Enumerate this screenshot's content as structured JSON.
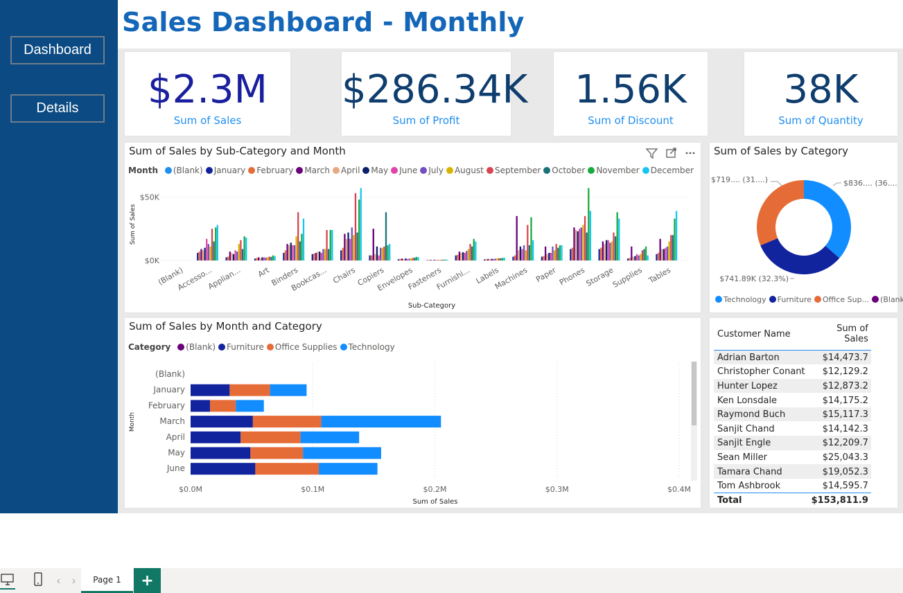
{
  "title": "Sales Dashboard - Monthly",
  "nav": {
    "dashboard_label": "Dashboard",
    "details_label": "Details"
  },
  "kpis": [
    {
      "value": "$2.3M",
      "label": "Sum of Sales",
      "color": "#1a1f9e"
    },
    {
      "value": "$286.34K",
      "label": "Sum of Profit",
      "color": "#0e3d6e"
    },
    {
      "value": "1.56K",
      "label": "Sum of Discount",
      "color": "#0e3d6e"
    },
    {
      "value": "38K",
      "label": "Sum of Quantity",
      "color": "#0e3d6e"
    }
  ],
  "colors": {
    "(Blank)": "#1f8ef0",
    "January": "#12239e",
    "February": "#e66c37",
    "March": "#6b007b",
    "April": "#e8a882",
    "May": "#0b1f6b",
    "June": "#e044a7",
    "July": "#744ec2",
    "August": "#d9b300",
    "September": "#d64550",
    "October": "#197278",
    "November": "#1aab40",
    "December": "#15c6f4",
    "Furniture": "#12239e",
    "Office Supplies": "#e66c37",
    "Technology": "#118dff",
    "CatBlank": "#6b007b"
  },
  "column_chart": {
    "title": "Sum of Sales by Sub-Category and Month",
    "legend_title": "Month",
    "legend": [
      "(Blank)",
      "January",
      "February",
      "March",
      "April",
      "May",
      "June",
      "July",
      "August",
      "September",
      "October",
      "November",
      "December"
    ],
    "y_ticks": [
      "$0K",
      "$50K"
    ],
    "ylabel": "Sum of Sales",
    "xlabel": "Sub-Category",
    "chart_data": {
      "type": "bar",
      "categories": [
        "(Blank)",
        "Accesso...",
        "Applian...",
        "Art",
        "Binders",
        "Bookcas...",
        "Chairs",
        "Copiers",
        "Envelopes",
        "Fasteners",
        "Furnishi...",
        "Labels",
        "Machines",
        "Paper",
        "Phones",
        "Storage",
        "Supplies",
        "Tables"
      ],
      "ylim": [
        0,
        60000
      ],
      "series": [
        {
          "name": "(Blank)",
          "values": [
            0,
            0,
            0,
            0,
            0,
            0,
            0,
            0,
            0,
            0,
            0,
            0,
            0,
            0,
            0,
            0,
            0,
            0
          ]
        },
        {
          "name": "January",
          "values": [
            0,
            6000,
            2500,
            1500,
            6000,
            5000,
            8000,
            4000,
            1000,
            300,
            4000,
            800,
            3000,
            3000,
            9000,
            9000,
            1500,
            5000
          ]
        },
        {
          "name": "February",
          "values": [
            0,
            7000,
            3000,
            2000,
            8000,
            5500,
            10000,
            4000,
            1200,
            400,
            4500,
            1000,
            4000,
            3500,
            10000,
            10000,
            2000,
            6000
          ]
        },
        {
          "name": "March",
          "values": [
            0,
            9000,
            7000,
            2500,
            13000,
            6000,
            21000,
            25000,
            1500,
            500,
            7000,
            1200,
            35000,
            11000,
            26000,
            15000,
            11000,
            17000
          ]
        },
        {
          "name": "April",
          "values": [
            0,
            8000,
            6000,
            1800,
            12000,
            7000,
            17000,
            5000,
            1000,
            400,
            6000,
            900,
            8000,
            5000,
            24000,
            13000,
            3000,
            9000
          ]
        },
        {
          "name": "May",
          "values": [
            0,
            10000,
            5000,
            2500,
            14000,
            7000,
            22000,
            11000,
            1600,
            500,
            6500,
            1300,
            11000,
            6000,
            23000,
            16000,
            3500,
            9000
          ]
        },
        {
          "name": "June",
          "values": [
            0,
            17000,
            8000,
            2500,
            12000,
            6000,
            17000,
            4000,
            1200,
            400,
            6000,
            1200,
            9000,
            6000,
            25000,
            16000,
            5000,
            10000
          ]
        },
        {
          "name": "July",
          "values": [
            0,
            13000,
            7000,
            2200,
            12000,
            9000,
            26000,
            10000,
            1400,
            450,
            7500,
            1400,
            12000,
            11000,
            26000,
            14000,
            4000,
            11000
          ]
        },
        {
          "name": "August",
          "values": [
            0,
            11000,
            13000,
            2600,
            19000,
            9000,
            20000,
            10000,
            1700,
            500,
            9000,
            1600,
            8000,
            8000,
            28000,
            15000,
            5000,
            15000
          ]
        },
        {
          "name": "September",
          "values": [
            0,
            25000,
            16000,
            3000,
            38000,
            24000,
            53000,
            11000,
            2000,
            600,
            13000,
            1800,
            28000,
            13000,
            35000,
            22000,
            8000,
            20000
          ]
        },
        {
          "name": "October",
          "values": [
            0,
            15000,
            9000,
            2800,
            15000,
            9000,
            22000,
            38000,
            2200,
            550,
            11000,
            1700,
            12000,
            10000,
            22000,
            19000,
            9000,
            20000
          ]
        },
        {
          "name": "November",
          "values": [
            0,
            26000,
            19000,
            4000,
            21000,
            24000,
            48000,
            12000,
            2800,
            700,
            17000,
            2000,
            34000,
            12000,
            57000,
            38000,
            11000,
            33000
          ]
        },
        {
          "name": "December",
          "values": [
            0,
            28000,
            18000,
            3500,
            33000,
            24000,
            57000,
            13000,
            2600,
            650,
            15000,
            2100,
            16000,
            12000,
            39000,
            33000,
            4000,
            39000
          ]
        }
      ]
    }
  },
  "donut_chart": {
    "title": "Sum of Sales by Category",
    "labels": {
      "technology": "$836.... (36....)",
      "office": "$719.... (31....)",
      "furniture": "$741.89K (32.3%)"
    },
    "legend": [
      "Technology",
      "Furniture",
      "Office Sup...",
      "(Blank)"
    ],
    "chart_data": {
      "type": "pie",
      "categories": [
        "Technology",
        "Furniture",
        "Office Supplies",
        "(Blank)"
      ],
      "values": [
        836154,
        741890,
        719047,
        0
      ]
    }
  },
  "bar_chart": {
    "title": "Sum of Sales by Month and Category",
    "legend_title": "Category",
    "legend": [
      "(Blank)",
      "Furniture",
      "Office Supplies",
      "Technology"
    ],
    "x_ticks": [
      "$0.0M",
      "$0.1M",
      "$0.2M",
      "$0.3M",
      "$0.4M"
    ],
    "xlabel": "Sum of Sales",
    "ylabel": "Month",
    "chart_data": {
      "type": "bar",
      "categories": [
        "(Blank)",
        "January",
        "February",
        "March",
        "April",
        "May",
        "June"
      ],
      "xlim": [
        0,
        0.4
      ],
      "series": [
        {
          "name": "(Blank)",
          "values": [
            0,
            0,
            0,
            0,
            0,
            0,
            0
          ]
        },
        {
          "name": "Furniture",
          "values": [
            0,
            0.032,
            0.016,
            0.051,
            0.041,
            0.049,
            0.053
          ]
        },
        {
          "name": "Office Supplies",
          "values": [
            0,
            0.033,
            0.021,
            0.056,
            0.049,
            0.043,
            0.052
          ]
        },
        {
          "name": "Technology",
          "values": [
            0,
            0.03,
            0.023,
            0.098,
            0.048,
            0.064,
            0.048
          ]
        }
      ]
    }
  },
  "table": {
    "headers": [
      "Customer Name",
      "Sum of Sales"
    ],
    "rows": [
      [
        "Adrian Barton",
        "$14,473.7"
      ],
      [
        "Christopher Conant",
        "$12,129.2"
      ],
      [
        "Hunter Lopez",
        "$12,873.2"
      ],
      [
        "Ken Lonsdale",
        "$14,175.2"
      ],
      [
        "Raymond Buch",
        "$15,117.3"
      ],
      [
        "Sanjit Chand",
        "$14,142.3"
      ],
      [
        "Sanjit Engle",
        "$12,209.7"
      ],
      [
        "Sean Miller",
        "$25,043.3"
      ],
      [
        "Tamara Chand",
        "$19,052.3"
      ],
      [
        "Tom Ashbrook",
        "$14,595.7"
      ]
    ],
    "total_label": "Total",
    "total_value": "$153,811.9"
  },
  "footer": {
    "page_tab": "Page 1",
    "add_page": "+"
  }
}
